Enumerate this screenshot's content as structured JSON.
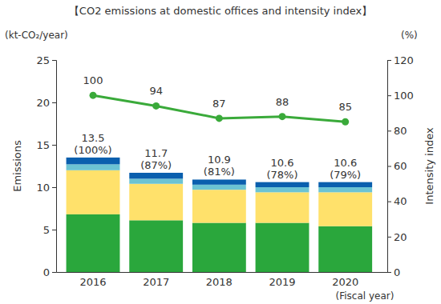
{
  "chart_data": {
    "type": "bar",
    "title": "【CO2  emissions at domestic offices and intensity index】",
    "y_unit": "(kt-CO₂/year)",
    "y2_unit": "(%)",
    "y_label": "Emissions",
    "y2_label": "Intensity index",
    "x_label": "(Fiscal year)",
    "categories": [
      "2016",
      "2017",
      "2018",
      "2019",
      "2020"
    ],
    "stacked": true,
    "series": [
      {
        "type": "bar",
        "color": "#2aa73c",
        "values": [
          6.8,
          6.1,
          5.8,
          5.8,
          5.4
        ]
      },
      {
        "type": "bar",
        "color": "#ffe16b",
        "values": [
          5.2,
          4.3,
          3.9,
          3.6,
          4.0
        ]
      },
      {
        "type": "bar",
        "color": "#6cc3d3",
        "values": [
          0.7,
          0.6,
          0.6,
          0.6,
          0.6
        ]
      },
      {
        "type": "bar",
        "color": "#0a5fae",
        "values": [
          0.8,
          0.7,
          0.6,
          0.6,
          0.6
        ]
      },
      {
        "type": "line",
        "axis": "y2",
        "color": "#3aaa3a",
        "marker": "circle",
        "data_labels": true,
        "values": [
          100,
          94,
          87,
          88,
          85
        ]
      }
    ],
    "bar_totals": {
      "values": [
        13.5,
        11.7,
        10.9,
        10.6,
        10.6
      ],
      "percent_labels": [
        "(100%)",
        "(87%)",
        "(81%)",
        "(78%)",
        "(79%)"
      ]
    },
    "ylim": [
      0,
      25
    ],
    "yticks": [
      0,
      5,
      10,
      15,
      20,
      25
    ],
    "y2lim": [
      0,
      120
    ],
    "y2ticks": [
      0,
      20,
      40,
      60,
      80,
      100,
      120
    ],
    "grid": false
  }
}
